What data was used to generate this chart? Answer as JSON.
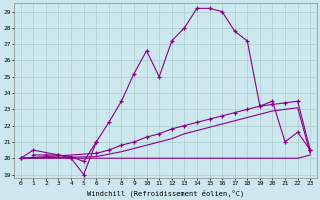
{
  "xlabel": "Windchill (Refroidissement éolien,°C)",
  "background_color": "#cce8ee",
  "grid_color": "#aacccc",
  "line_color": "#880088",
  "xlim": [
    -0.5,
    23.5
  ],
  "ylim": [
    18.8,
    29.5
  ],
  "yticks": [
    19,
    20,
    21,
    22,
    23,
    24,
    25,
    26,
    27,
    28,
    29
  ],
  "xticks": [
    0,
    1,
    2,
    3,
    4,
    5,
    6,
    7,
    8,
    9,
    10,
    11,
    12,
    13,
    14,
    15,
    16,
    17,
    18,
    19,
    20,
    21,
    22,
    23
  ],
  "curve_x": [
    0,
    1,
    3,
    4,
    5,
    6,
    7,
    8,
    9,
    10,
    11,
    12,
    13,
    14,
    15,
    16,
    17,
    18,
    19,
    20,
    21,
    22,
    23
  ],
  "curve_y": [
    20.0,
    20.5,
    20.2,
    20.1,
    19.8,
    21.0,
    22.2,
    23.5,
    25.2,
    26.6,
    25.0,
    27.2,
    28.0,
    29.2,
    29.2,
    29.0,
    27.8,
    27.2,
    23.2,
    23.5,
    21.0,
    21.6,
    20.5
  ],
  "diag_x": [
    0,
    6,
    7,
    8,
    9,
    10,
    11,
    12,
    13,
    14,
    15,
    16,
    17,
    18,
    19,
    20,
    21,
    22,
    23
  ],
  "diag_y": [
    20.0,
    20.3,
    20.5,
    20.8,
    21.0,
    21.3,
    21.5,
    21.8,
    22.0,
    22.2,
    22.4,
    22.6,
    22.8,
    23.0,
    23.2,
    23.3,
    23.4,
    23.5,
    20.5
  ],
  "diag2_x": [
    0,
    6,
    7,
    8,
    9,
    10,
    11,
    12,
    13,
    14,
    15,
    16,
    17,
    18,
    19,
    20,
    21,
    22,
    23
  ],
  "diag2_y": [
    20.0,
    20.1,
    20.25,
    20.4,
    20.6,
    20.8,
    21.0,
    21.2,
    21.5,
    21.7,
    21.9,
    22.1,
    22.3,
    22.5,
    22.7,
    22.9,
    23.0,
    23.1,
    20.3
  ],
  "flat_x": [
    0,
    3,
    4,
    5,
    6,
    7,
    8,
    9,
    10,
    11,
    12,
    13,
    14,
    15,
    16,
    17,
    18,
    19,
    20,
    21,
    22,
    23
  ],
  "flat_y": [
    20.0,
    20.0,
    20.0,
    20.0,
    20.0,
    20.0,
    20.0,
    20.0,
    20.0,
    20.0,
    20.0,
    20.0,
    20.0,
    20.0,
    20.0,
    20.0,
    20.0,
    20.0,
    20.0,
    20.0,
    20.0,
    20.2
  ],
  "dip_x": [
    1,
    2,
    3,
    4,
    5,
    6
  ],
  "dip_y": [
    20.2,
    20.2,
    20.2,
    20.0,
    19.0,
    21.0
  ]
}
